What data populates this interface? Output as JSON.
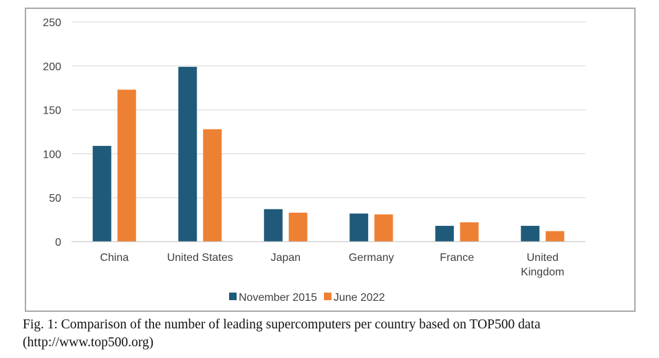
{
  "chart_data": {
    "type": "bar",
    "categories": [
      "China",
      "United States",
      "Japan",
      "Germany",
      "France",
      "United Kingdom"
    ],
    "category_lines": [
      [
        "China"
      ],
      [
        "United States"
      ],
      [
        "Japan"
      ],
      [
        "Germany"
      ],
      [
        "France"
      ],
      [
        "United",
        "Kingdom"
      ]
    ],
    "series": [
      {
        "name": "November 2015",
        "color": "#1f5a7a",
        "values": [
          109,
          199,
          37,
          32,
          18,
          18
        ]
      },
      {
        "name": "June 2022",
        "color": "#ee8033",
        "values": [
          173,
          128,
          33,
          31,
          22,
          12
        ]
      }
    ],
    "ylim": [
      0,
      250
    ],
    "yticks": [
      0,
      50,
      100,
      150,
      200,
      250
    ],
    "grid": true,
    "legend": "bottom-center"
  },
  "caption": {
    "line1": "Fig. 1: Comparison of the number of leading supercomputers per country based on TOP500 data",
    "line2": "(http://www.top500.org)"
  }
}
